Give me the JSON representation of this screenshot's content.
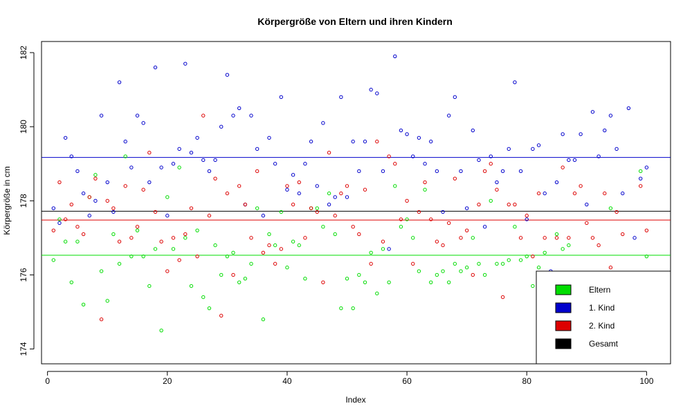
{
  "chart_data": {
    "type": "scatter",
    "title": "Körpergröße von Eltern und ihren Kindern",
    "xlabel": "Index",
    "ylabel": "Körpergröße in cm",
    "xlim": [
      -1,
      104
    ],
    "ylim": [
      173.6,
      182.3
    ],
    "x_ticks": [
      0,
      20,
      40,
      60,
      80,
      100
    ],
    "y_ticks": [
      174,
      176,
      178,
      180,
      182
    ],
    "legend_position": "bottom-right",
    "series": [
      {
        "name": "Eltern",
        "color": "#00dd00",
        "mean": 176.53,
        "values": [
          176.4,
          177.5,
          176.9,
          175.8,
          176.9,
          175.2,
          178.1,
          178.7,
          176.1,
          175.3,
          177.1,
          176.3,
          179.2,
          176.5,
          177.2,
          176.5,
          175.7,
          176.7,
          174.5,
          178.1,
          176.7,
          178.9,
          177.0,
          175.7,
          177.2,
          175.4,
          175.1,
          176.8,
          176.0,
          176.5,
          176.6,
          175.8,
          175.9,
          176.3,
          177.8,
          174.8,
          177.1,
          176.8,
          177.7,
          176.2,
          176.9,
          176.8,
          175.9,
          177.8,
          177.8,
          177.3,
          178.2,
          177.1,
          175.1,
          175.9,
          175.1,
          176.0,
          175.8,
          176.6,
          175.5,
          176.7,
          175.8,
          178.4,
          177.3,
          177.5,
          177.0,
          176.1,
          178.3,
          175.8,
          176.0,
          176.1,
          175.8,
          176.3,
          176.1,
          176.2,
          177.0,
          176.3,
          176.0,
          178.0,
          176.3,
          176.3,
          176.4,
          177.3,
          176.4,
          176.5,
          175.7,
          176.2,
          176.6,
          176.0,
          177.1,
          176.7,
          176.8,
          174.8,
          176.0,
          176.0,
          175.8,
          175.6,
          174.4,
          177.8,
          174.6,
          176.0,
          175.2,
          175.7,
          178.8,
          176.5
        ]
      },
      {
        "name": "1. Kind",
        "color": "#0000cc",
        "mean": 179.17,
        "values": [
          177.8,
          177.4,
          179.7,
          179.2,
          178.8,
          178.2,
          177.6,
          178.0,
          180.3,
          178.5,
          177.7,
          181.2,
          179.6,
          178.9,
          180.3,
          180.1,
          178.5,
          181.6,
          178.9,
          177.6,
          179.0,
          179.4,
          181.7,
          179.3,
          179.7,
          179.1,
          178.8,
          179.1,
          180.0,
          181.4,
          180.3,
          180.5,
          177.9,
          180.3,
          179.4,
          177.6,
          179.7,
          179.0,
          180.8,
          178.3,
          178.7,
          178.2,
          179.0,
          179.6,
          178.4,
          180.1,
          177.9,
          178.1,
          180.8,
          178.1,
          179.6,
          178.8,
          179.6,
          181.0,
          180.9,
          178.8,
          176.7,
          181.9,
          179.9,
          179.8,
          179.2,
          179.7,
          179.0,
          179.6,
          178.8,
          177.7,
          180.3,
          180.8,
          178.8,
          177.8,
          179.9,
          179.1,
          177.3,
          179.2,
          178.5,
          178.8,
          179.4,
          181.2,
          178.8,
          177.5,
          179.4,
          179.5,
          178.2,
          176.1,
          178.5,
          179.8,
          179.1,
          179.1,
          179.8,
          177.9,
          180.4,
          179.2,
          179.9,
          180.3,
          179.4,
          178.2,
          180.5,
          177.0,
          178.6,
          178.9
        ]
      },
      {
        "name": "2. Kind",
        "color": "#dd0000",
        "mean": 177.48,
        "values": [
          177.2,
          178.5,
          177.5,
          177.9,
          177.3,
          177.1,
          178.1,
          178.6,
          174.8,
          178.0,
          177.8,
          176.9,
          178.4,
          177.0,
          177.3,
          178.3,
          179.3,
          177.7,
          176.9,
          176.1,
          177.0,
          176.4,
          177.1,
          177.8,
          176.5,
          180.3,
          177.6,
          178.6,
          174.9,
          178.2,
          176.0,
          178.4,
          177.9,
          177.0,
          178.8,
          176.6,
          176.8,
          176.3,
          176.7,
          178.4,
          177.9,
          178.5,
          177.0,
          177.8,
          177.7,
          175.8,
          179.3,
          177.6,
          178.2,
          178.4,
          177.3,
          177.1,
          178.3,
          176.3,
          179.6,
          176.9,
          179.2,
          179.0,
          177.5,
          178.0,
          176.3,
          177.7,
          178.5,
          177.5,
          176.9,
          176.8,
          177.4,
          178.6,
          177.0,
          177.2,
          176.0,
          177.9,
          178.8,
          179.0,
          178.3,
          175.4,
          177.9,
          177.9,
          177.0,
          177.6,
          176.5,
          178.2,
          177.0,
          175.7,
          177.0,
          178.9,
          177.0,
          178.2,
          178.4,
          177.4,
          177.0,
          176.8,
          178.2,
          176.2,
          177.7,
          177.1,
          174.9,
          175.9,
          178.4,
          177.2
        ]
      },
      {
        "name": "Gesamt",
        "color": "#000000",
        "mean": 177.72
      }
    ]
  }
}
